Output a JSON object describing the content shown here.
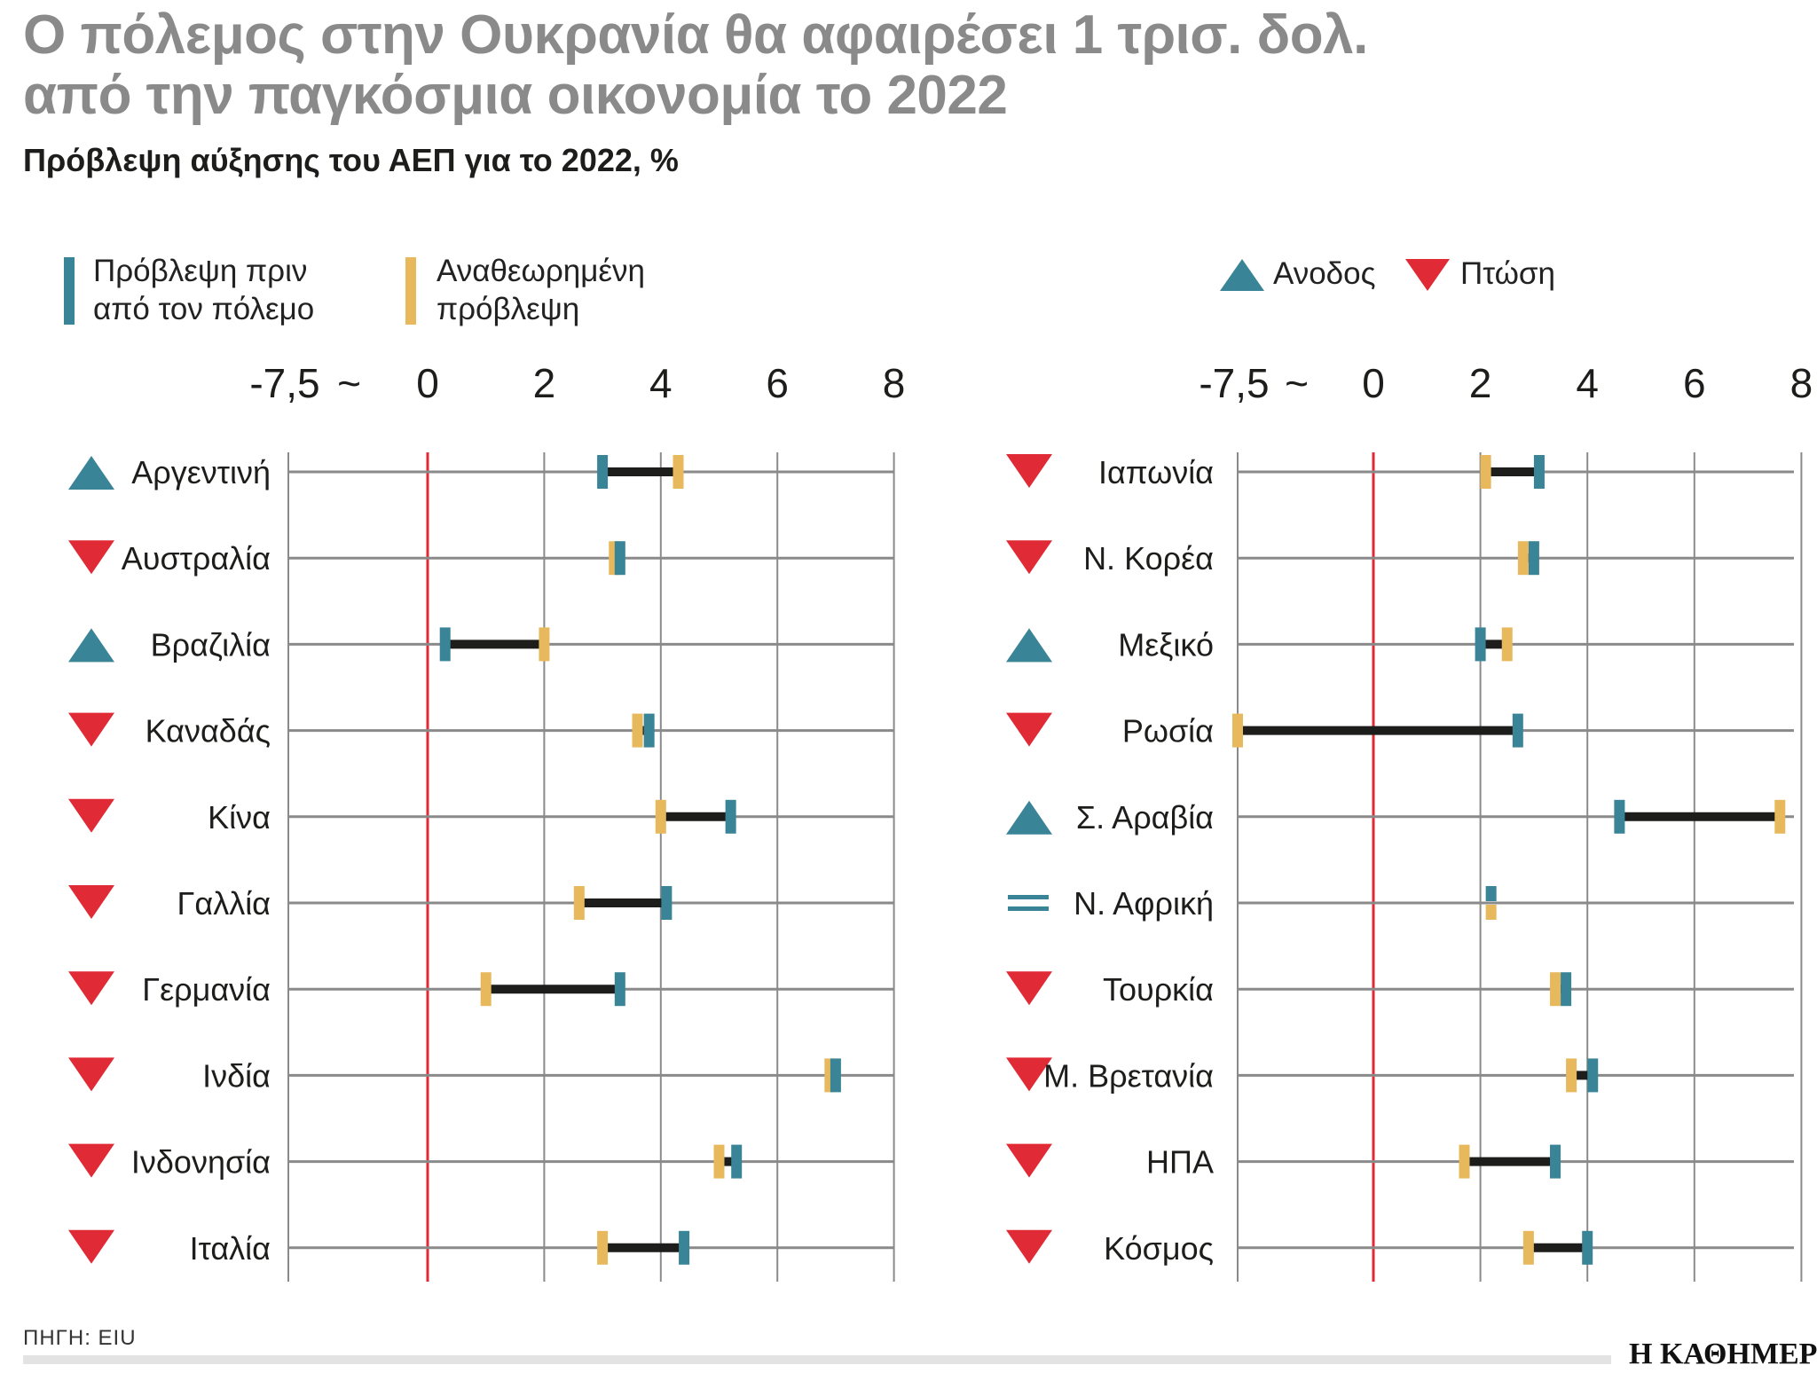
{
  "header": {
    "title_line1": "Ο πόλεμος στην Ουκρανία θα αφαιρέσει 1 τρισ. δολ.",
    "title_line2": "από την παγκόσμια οικονομία το 2022",
    "subtitle": "Πρόβλεψη αύξησης του ΑΕΠ για το 2022, %"
  },
  "legend": {
    "before_line1": "Πρόβλεψη πριν",
    "before_line2": "από τον πόλεμο",
    "revised_line1": "Αναθεωρημένη",
    "revised_line2": "πρόβλεψη",
    "up": "Ανοδος",
    "down": "Πτώση"
  },
  "colors": {
    "before": "#3a8497",
    "revised": "#e8b85c",
    "up": "#3a8497",
    "down": "#e02a35",
    "connector": "#1d1d1b",
    "zero_line": "#e02a35",
    "grid": "#8a8a8a"
  },
  "chart_data": [
    {
      "type": "dumbbell",
      "x_ticks": [
        "-7,5",
        "~",
        "0",
        "2",
        "4",
        "6",
        "8"
      ],
      "x_break": {
        "from": -7.5,
        "to": 0
      },
      "xlim": [
        -7.5,
        8
      ],
      "series": [
        {
          "name": "Πρόβλεψη πριν από τον πόλεμο",
          "key": "before"
        },
        {
          "name": "Αναθεωρημένη πρόβλεψη",
          "key": "revised"
        }
      ],
      "rows": [
        {
          "label": "Αργεντινή",
          "before": 3.0,
          "revised": 4.3,
          "trend": "up"
        },
        {
          "label": "Αυστραλία",
          "before": 3.3,
          "revised": 3.2,
          "trend": "down"
        },
        {
          "label": "Βραζιλία",
          "before": 0.3,
          "revised": 2.0,
          "trend": "up"
        },
        {
          "label": "Καναδάς",
          "before": 3.8,
          "revised": 3.6,
          "trend": "down"
        },
        {
          "label": "Κίνα",
          "before": 5.2,
          "revised": 4.0,
          "trend": "down"
        },
        {
          "label": "Γαλλία",
          "before": 4.1,
          "revised": 2.6,
          "trend": "down"
        },
        {
          "label": "Γερμανία",
          "before": 3.3,
          "revised": 1.0,
          "trend": "down"
        },
        {
          "label": "Ινδία",
          "before": 7.0,
          "revised": 6.9,
          "trend": "down"
        },
        {
          "label": "Ινδονησία",
          "before": 5.3,
          "revised": 5.0,
          "trend": "down"
        },
        {
          "label": "Ιταλία",
          "before": 4.4,
          "revised": 3.0,
          "trend": "down"
        }
      ]
    },
    {
      "type": "dumbbell",
      "x_ticks": [
        "-7,5",
        "~",
        "0",
        "2",
        "4",
        "6",
        "8"
      ],
      "x_break": {
        "from": -7.5,
        "to": 0
      },
      "xlim": [
        -7.5,
        8
      ],
      "series": [
        {
          "name": "Πρόβλεψη πριν από τον πόλεμο",
          "key": "before"
        },
        {
          "name": "Αναθεωρημένη πρόβλεψη",
          "key": "revised"
        }
      ],
      "rows": [
        {
          "label": "Ιαπωνία",
          "before": 3.1,
          "revised": 2.1,
          "trend": "down"
        },
        {
          "label": "Ν. Κορέα",
          "before": 3.0,
          "revised": 2.8,
          "trend": "down"
        },
        {
          "label": "Μεξικό",
          "before": 2.0,
          "revised": 2.5,
          "trend": "up"
        },
        {
          "label": "Ρωσία",
          "before": 2.7,
          "revised": -7.5,
          "trend": "down"
        },
        {
          "label": "Σ. Αραβία",
          "before": 4.6,
          "revised": 7.6,
          "trend": "up"
        },
        {
          "label": "Ν. Αφρική",
          "before": 2.2,
          "revised": 2.2,
          "trend": "equal"
        },
        {
          "label": "Τουρκία",
          "before": 3.6,
          "revised": 3.4,
          "trend": "down"
        },
        {
          "label": "Μ. Βρετανία",
          "before": 4.1,
          "revised": 3.7,
          "trend": "down"
        },
        {
          "label": "ΗΠΑ",
          "before": 3.4,
          "revised": 1.7,
          "trend": "down"
        },
        {
          "label": "Κόσμος",
          "before": 4.0,
          "revised": 2.9,
          "trend": "down"
        }
      ]
    }
  ],
  "footer": {
    "source": "ΠΗΓΗ: EIU",
    "brand": "Η ΚΑΘΗΜΕΡΙΝΗ"
  }
}
